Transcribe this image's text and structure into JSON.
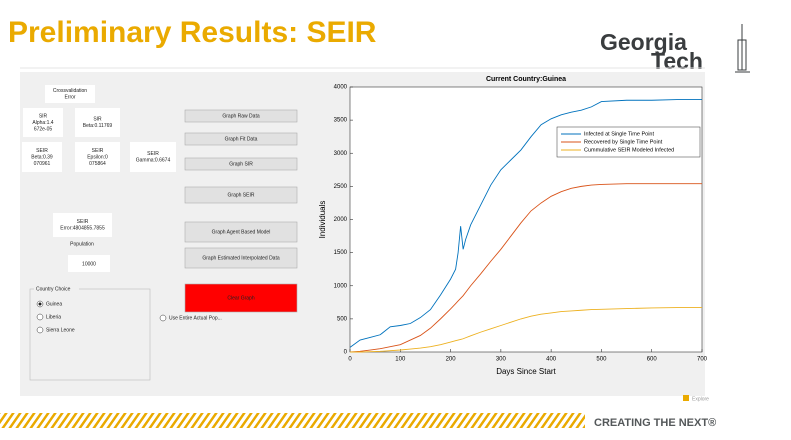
{
  "slide": {
    "title": "Preliminary Results: SEIR",
    "logo": [
      "Georgia",
      "Tech"
    ],
    "footer": "CREATING THE NEXT®"
  },
  "gui": {
    "crossval": [
      "Crossvalidation",
      "Error"
    ],
    "sir_alpha": [
      "SIR",
      "Alpha:1.4",
      "672e-05"
    ],
    "sir_beta": [
      "SIR",
      "Beta:0.11769"
    ],
    "seir_beta": [
      "SEIR",
      "Beta:0.39",
      "070961"
    ],
    "seir_epsilon": [
      "SEIR",
      "Epsilon:0",
      "075864"
    ],
    "seir_gamma": [
      "SEIR",
      "Gamma:0.6674"
    ],
    "seir_error": [
      "SEIR",
      "Error:4804855.7855"
    ],
    "population_label": "Population",
    "population": "10000",
    "buttons": [
      "Graph Raw Data",
      "Graph Fit Data",
      "Graph SIR",
      "Graph SEIR",
      "Graph Agent Based Model",
      "Graph Estimated Interpolated Data",
      "Clear Graph"
    ],
    "country_group": "Country Choice",
    "countries": [
      "Guinea",
      "Liberia",
      "Sierra Leone"
    ],
    "entire_pop": "Use Entire Actual Pop...",
    "tab": "Explore"
  },
  "chart_data": {
    "type": "line",
    "title": "Current Country:Guinea",
    "xlabel": "Days Since Start",
    "ylabel": "Individuals",
    "x": [
      0,
      20,
      40,
      60,
      80,
      100,
      120,
      140,
      160,
      180,
      200,
      210,
      215,
      220,
      225,
      230,
      240,
      260,
      280,
      300,
      320,
      340,
      360,
      380,
      400,
      420,
      440,
      460,
      480,
      500,
      550,
      600,
      650,
      700
    ],
    "series": [
      {
        "name": "Infected at Single Time Point",
        "color": "#0072bd",
        "values": [
          70,
          180,
          220,
          260,
          380,
          400,
          430,
          520,
          640,
          860,
          1100,
          1250,
          1500,
          1900,
          1550,
          1700,
          1920,
          2220,
          2520,
          2750,
          2900,
          3050,
          3250,
          3430,
          3520,
          3580,
          3620,
          3650,
          3700,
          3780,
          3800,
          3800,
          3810,
          3810
        ]
      },
      {
        "name": "Recovered by Single Time Point",
        "color": "#d95319",
        "values": [
          0,
          10,
          30,
          50,
          80,
          110,
          180,
          250,
          360,
          500,
          650,
          730,
          770,
          810,
          850,
          900,
          1000,
          1180,
          1370,
          1550,
          1750,
          1950,
          2130,
          2250,
          2350,
          2420,
          2470,
          2500,
          2520,
          2530,
          2540,
          2540,
          2540,
          2540
        ]
      },
      {
        "name": "Cummulative SEIR Modeled Infected",
        "color": "#edb120",
        "values": [
          0,
          0,
          5,
          10,
          20,
          30,
          45,
          60,
          80,
          110,
          150,
          170,
          180,
          190,
          200,
          215,
          245,
          300,
          350,
          400,
          450,
          500,
          540,
          570,
          590,
          610,
          620,
          630,
          640,
          645,
          655,
          665,
          670,
          670
        ]
      }
    ],
    "xlim": [
      0,
      700
    ],
    "xticks": [
      0,
      100,
      200,
      300,
      400,
      500,
      600,
      700
    ],
    "ylim": [
      0,
      4000
    ],
    "yticks": [
      0,
      500,
      1000,
      1500,
      2000,
      2500,
      3000,
      3500,
      4000
    ],
    "legend": "upper right"
  }
}
